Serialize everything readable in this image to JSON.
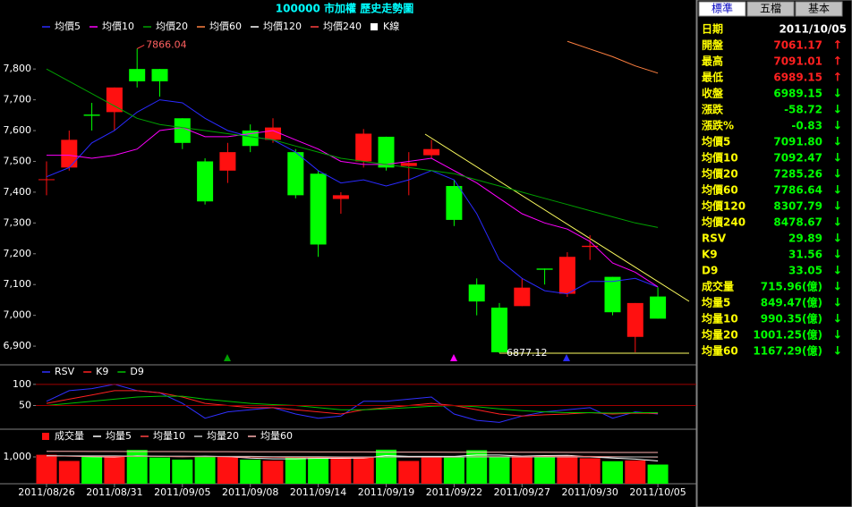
{
  "chart_data": [
    {
      "type": "candlestick",
      "title": "100000 市加權  歷史走勢圖",
      "categories": [
        "2011/08/26",
        null,
        null,
        "2011/08/31",
        null,
        null,
        "2011/09/05",
        null,
        null,
        "2011/09/08",
        null,
        null,
        "2011/09/14",
        null,
        null,
        "2011/09/19",
        null,
        null,
        "2011/09/22",
        null,
        null,
        "2011/09/27",
        null,
        null,
        "2011/09/30",
        null,
        null,
        "2011/10/05"
      ],
      "ohlc": {
        "name": "K線",
        "color": "#ffffff",
        "up_color": "#ff1010",
        "down_color": "#00ff00",
        "open": [
          7440,
          7480,
          7652,
          7660,
          7800,
          7800,
          7640,
          7500,
          7470,
          7600,
          7570,
          7530,
          7460,
          7378,
          7500,
          7580,
          7485,
          7520,
          7420,
          7100,
          7025,
          7030,
          7152,
          7070,
          7222,
          7125,
          6930,
          7061.17
        ],
        "high": [
          7500,
          7600,
          7690,
          7740,
          7866.04,
          7800,
          7640,
          7510,
          7560,
          7620,
          7640,
          7540,
          7470,
          7400,
          7605,
          7580,
          7530,
          7570,
          7440,
          7120,
          7040,
          7120,
          7152,
          7205,
          7260,
          7125,
          7040,
          7091.01
        ],
        "low": [
          7390,
          7470,
          7600,
          7600,
          7740,
          7710,
          7540,
          7360,
          7430,
          7530,
          7560,
          7380,
          7190,
          7330,
          7480,
          7470,
          7390,
          7510,
          7290,
          7000,
          6877.12,
          7030,
          7100,
          7060,
          7180,
          7000,
          6880,
          6989.15
        ],
        "close": [
          7442,
          7570,
          7648,
          7740,
          7760,
          7760,
          7560,
          7370,
          7530,
          7550,
          7610,
          7390,
          7230,
          7390,
          7590,
          7480,
          7495,
          7540,
          7310,
          7045,
          6880,
          7090,
          7148,
          7190,
          7226,
          7010,
          7040,
          6989.15
        ]
      },
      "series": [
        {
          "name": "均價5",
          "color": "#2a2aff",
          "values": [
            7450,
            7480,
            7560,
            7600,
            7660,
            7700,
            7690,
            7640,
            7600,
            7580,
            7570,
            7530,
            7470,
            7430,
            7440,
            7420,
            7440,
            7470,
            7440,
            7330,
            7180,
            7120,
            7080,
            7070,
            7110,
            7110,
            7120,
            7091.8
          ]
        },
        {
          "name": "均價10",
          "color": "#ff00ff",
          "values": [
            7520,
            7520,
            7510,
            7520,
            7540,
            7600,
            7610,
            7580,
            7580,
            7590,
            7600,
            7570,
            7540,
            7500,
            7490,
            7490,
            7500,
            7510,
            7470,
            7430,
            7380,
            7330,
            7300,
            7280,
            7240,
            7170,
            7140,
            7092.47
          ]
        },
        {
          "name": "均價20",
          "color": "#00a000",
          "values": [
            7800,
            7760,
            7720,
            7680,
            7640,
            7620,
            7610,
            7600,
            7590,
            7580,
            7570,
            7550,
            7530,
            7510,
            7500,
            7490,
            7480,
            7470,
            7460,
            7440,
            7420,
            7400,
            7380,
            7360,
            7340,
            7320,
            7300,
            7285.26
          ]
        },
        {
          "name": "均價60",
          "color": "#ff8040",
          "values": [
            null,
            null,
            null,
            null,
            null,
            null,
            null,
            null,
            null,
            null,
            null,
            null,
            null,
            null,
            null,
            null,
            null,
            null,
            null,
            null,
            null,
            null,
            null,
            7890,
            7865,
            7840,
            7810,
            7786.64
          ]
        },
        {
          "name": "均價120",
          "color": "#ffffff",
          "values": [
            null,
            null,
            null,
            null,
            null,
            null,
            null,
            null,
            null,
            null,
            null,
            null,
            null,
            null,
            null,
            null,
            null,
            null,
            null,
            null,
            null,
            null,
            null,
            null,
            null,
            null,
            null,
            null
          ]
        },
        {
          "name": "均價240",
          "color": "#ff4040",
          "values": [
            null,
            null,
            null,
            null,
            null,
            null,
            null,
            null,
            null,
            null,
            null,
            null,
            null,
            null,
            null,
            null,
            null,
            null,
            null,
            null,
            null,
            null,
            null,
            null,
            null,
            null,
            null,
            null
          ]
        }
      ],
      "annotations": [
        "7866.04",
        "6877.12"
      ],
      "ylim": [
        6848,
        7966
      ],
      "yticks": [
        {
          "value": 6900,
          "label": "6,900"
        },
        {
          "value": 7000,
          "label": "7,000"
        },
        {
          "value": 7100,
          "label": "7,100"
        },
        {
          "value": 7200,
          "label": "7,200"
        },
        {
          "value": 7300,
          "label": "7,300"
        },
        {
          "value": 7400,
          "label": "7,400"
        },
        {
          "value": 7500,
          "label": "7,500"
        },
        {
          "value": 7600,
          "label": "7,600"
        },
        {
          "value": 7700,
          "label": "7,700"
        },
        {
          "value": 7800,
          "label": "7,800"
        }
      ]
    },
    {
      "type": "line",
      "series": [
        {
          "name": "RSV",
          "color": "#3030ff",
          "values": [
            60,
            85,
            90,
            100,
            85,
            80,
            55,
            20,
            35,
            40,
            45,
            30,
            20,
            25,
            60,
            60,
            65,
            70,
            30,
            15,
            10,
            25,
            35,
            40,
            45,
            20,
            35,
            29.89
          ]
        },
        {
          "name": "K9",
          "color": "#ff2020",
          "values": [
            55,
            65,
            75,
            85,
            85,
            80,
            70,
            55,
            50,
            45,
            45,
            40,
            35,
            30,
            40,
            45,
            50,
            55,
            50,
            40,
            30,
            25,
            28,
            30,
            33,
            30,
            32,
            31.56
          ]
        },
        {
          "name": "D9",
          "color": "#00c000",
          "values": [
            50,
            55,
            60,
            65,
            70,
            72,
            72,
            65,
            60,
            55,
            52,
            50,
            45,
            40,
            40,
            42,
            45,
            48,
            50,
            47,
            42,
            38,
            35,
            33,
            33,
            32,
            33,
            33.05
          ]
        }
      ],
      "ylim": [
        -6,
        144
      ],
      "yticks": [
        50,
        100
      ],
      "grid": true,
      "grid_color": "#a00000"
    },
    {
      "type": "bar",
      "name": "成交量",
      "color": "#ff1010",
      "values": [
        1080,
        850,
        1000,
        1000,
        1260,
        980,
        900,
        1000,
        1010,
        900,
        860,
        990,
        1000,
        990,
        980,
        1270,
        850,
        990,
        1000,
        1250,
        1010,
        1030,
        990,
        1000,
        950,
        840,
        870,
        715.96
      ],
      "series": [
        {
          "name": "均量5",
          "color": "#ffffff",
          "values": [
            1050,
            1030,
            1010,
            1000,
            1040,
            1020,
            1010,
            1030,
            1010,
            960,
            930,
            930,
            950,
            950,
            960,
            1050,
            1020,
            1020,
            1020,
            1070,
            1070,
            1030,
            1050,
            1060,
            1000,
            960,
            920,
            849.47
          ]
        },
        {
          "name": "均量10",
          "color": "#ff4040",
          "values": [
            1030,
            1030,
            1030,
            1020,
            1020,
            1020,
            1010,
            1010,
            1010,
            1000,
            990,
            980,
            980,
            980,
            980,
            1000,
            990,
            990,
            990,
            1010,
            1010,
            1010,
            1020,
            1020,
            1020,
            1010,
            1000,
            990.35
          ]
        },
        {
          "name": "均量20",
          "color": "#c0c0c0",
          "values": [
            1040,
            1040,
            1040,
            1040,
            1030,
            1030,
            1030,
            1020,
            1020,
            1020,
            1010,
            1010,
            1010,
            1000,
            1000,
            1000,
            1000,
            1000,
            1000,
            1000,
            1000,
            1000,
            1000,
            1000,
            1000,
            1000,
            1000,
            1001.25
          ]
        },
        {
          "name": "均量60",
          "color": "#ffb0b0",
          "values": [
            1210,
            1210,
            1205,
            1205,
            1200,
            1200,
            1200,
            1195,
            1195,
            1190,
            1190,
            1190,
            1185,
            1185,
            1185,
            1180,
            1180,
            1180,
            1175,
            1175,
            1175,
            1172,
            1172,
            1170,
            1170,
            1168,
            1168,
            1167.29
          ]
        }
      ],
      "ylim": [
        0,
        2000
      ],
      "yticks": [
        {
          "value": 1000,
          "label": "1,000"
        }
      ]
    }
  ],
  "panel": {
    "tabs": [
      "標準",
      "五檔",
      "基本"
    ],
    "rows": [
      {
        "label": "日期",
        "value": "2011/10/05",
        "color": "#ffffff"
      },
      {
        "label": "開盤",
        "value": "7061.17",
        "arrow": "↑",
        "color": "#ff2020"
      },
      {
        "label": "最高",
        "value": "7091.01",
        "arrow": "↑",
        "color": "#ff2020"
      },
      {
        "label": "最低",
        "value": "6989.15",
        "arrow": "↑",
        "color": "#ff2020"
      },
      {
        "label": "收盤",
        "value": "6989.15",
        "arrow": "↓",
        "color": "#00ff00"
      },
      {
        "label": "漲跌",
        "value": "-58.72",
        "arrow": "↓",
        "color": "#00ff00"
      },
      {
        "label": "漲跌%",
        "value": "-0.83",
        "arrow": "↓",
        "color": "#00ff00"
      },
      {
        "label": "均價5",
        "value": "7091.80",
        "arrow": "↓",
        "color": "#00ff00"
      },
      {
        "label": "均價10",
        "value": "7092.47",
        "arrow": "↓",
        "color": "#00ff00"
      },
      {
        "label": "均價20",
        "value": "7285.26",
        "arrow": "↓",
        "color": "#00ff00"
      },
      {
        "label": "均價60",
        "value": "7786.64",
        "arrow": "↓",
        "color": "#00ff00"
      },
      {
        "label": "均價120",
        "value": "8307.79",
        "arrow": "↓",
        "color": "#00ff00"
      },
      {
        "label": "均價240",
        "value": "8478.67",
        "arrow": "↓",
        "color": "#00ff00"
      },
      {
        "label": "RSV",
        "value": "29.89",
        "arrow": "↓",
        "color": "#00ff00"
      },
      {
        "label": "K9",
        "value": "31.56",
        "arrow": "↓",
        "color": "#00ff00"
      },
      {
        "label": "D9",
        "value": "33.05",
        "arrow": "↓",
        "color": "#00ff00"
      },
      {
        "label": "成交量",
        "value": "715.96(億)",
        "arrow": "↓",
        "color": "#00ff00"
      },
      {
        "label": "均量5",
        "value": "849.47(億)",
        "arrow": "↓",
        "color": "#00ff00"
      },
      {
        "label": "均量10",
        "value": "990.35(億)",
        "arrow": "↓",
        "color": "#00ff00"
      },
      {
        "label": "均量20",
        "value": "1001.25(億)",
        "arrow": "↓",
        "color": "#00ff00"
      },
      {
        "label": "均量60",
        "value": "1167.29(億)",
        "arrow": "↓",
        "color": "#00ff00"
      }
    ]
  }
}
